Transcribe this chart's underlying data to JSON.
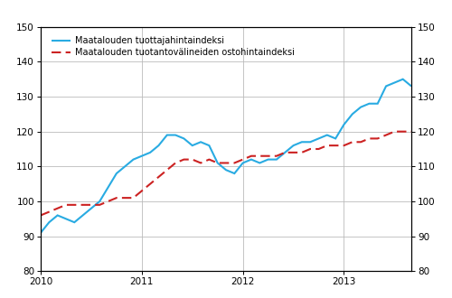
{
  "line1_label": "Maatalouden tuottajahintaindeksi",
  "line2_label": "Maatalouden tuotantovälineiden ostohintaindeksi",
  "line1_color": "#29ABE2",
  "line2_color": "#CC2222",
  "ylim": [
    80,
    150
  ],
  "yticks": [
    80,
    90,
    100,
    110,
    120,
    130,
    140,
    150
  ],
  "xticks_positions": [
    0,
    12,
    24,
    36
  ],
  "xtick_labels": [
    "2010",
    "2011",
    "2012",
    "2013"
  ],
  "grid_color": "#bbbbbb",
  "line1_data": [
    91,
    94,
    96,
    95,
    94,
    96,
    98,
    100,
    104,
    108,
    110,
    112,
    113,
    114,
    116,
    119,
    119,
    118,
    116,
    117,
    116,
    111,
    109,
    108,
    111,
    112,
    111,
    112,
    112,
    114,
    116,
    117,
    117,
    118,
    119,
    118,
    122,
    125,
    127,
    128,
    128,
    133,
    134,
    135,
    133
  ],
  "line2_data": [
    96,
    97,
    98,
    99,
    99,
    99,
    99,
    99,
    100,
    101,
    101,
    101,
    103,
    105,
    107,
    109,
    111,
    112,
    112,
    111,
    112,
    111,
    111,
    111,
    112,
    113,
    113,
    113,
    113,
    114,
    114,
    114,
    115,
    115,
    116,
    116,
    116,
    117,
    117,
    118,
    118,
    119,
    120,
    120,
    120
  ]
}
